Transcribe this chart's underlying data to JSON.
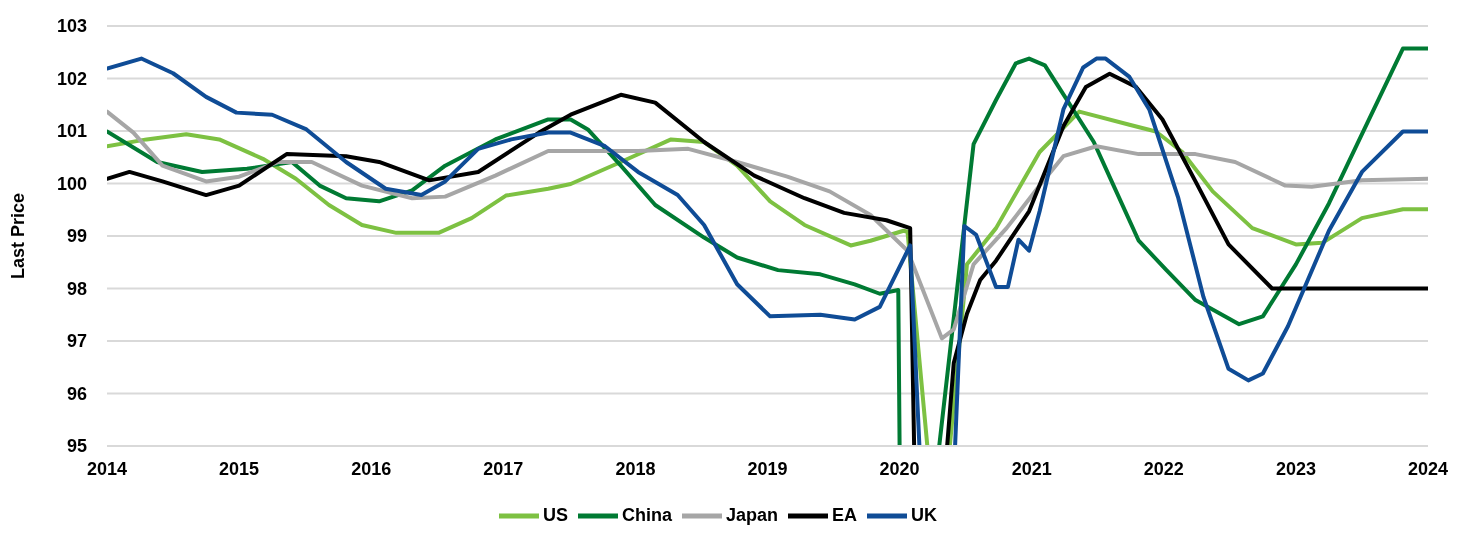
{
  "chart_data": {
    "type": "line",
    "ylabel": "Last Price",
    "xlim": [
      2014,
      2024
    ],
    "xticks": [
      2014,
      2015,
      2016,
      2017,
      2018,
      2019,
      2020,
      2021,
      2022,
      2023,
      2024
    ],
    "ylim": [
      95,
      103
    ],
    "yticks": [
      95,
      96,
      97,
      98,
      99,
      100,
      101,
      102,
      103
    ],
    "grid": "y",
    "legend": "bottom",
    "line_style": "solid",
    "series": [
      {
        "name": "US",
        "color": "#7dc142",
        "x": [
          2014.0,
          2014.3,
          2014.6,
          2014.85,
          2015.18,
          2015.43,
          2015.68,
          2015.93,
          2016.19,
          2016.51,
          2016.76,
          2017.02,
          2017.34,
          2017.51,
          2017.89,
          2018.27,
          2018.52,
          2018.77,
          2019.02,
          2019.28,
          2019.63,
          2019.78,
          2020.03,
          2020.06,
          2020.21,
          2020.3,
          2020.38,
          2020.51,
          2020.73,
          2021.06,
          2021.36,
          2021.74,
          2021.94,
          2022.14,
          2022.37,
          2022.67,
          2023.0,
          2023.2,
          2023.5,
          2023.81,
          2024.0
        ],
        "values": [
          100.71,
          100.84,
          100.94,
          100.84,
          100.47,
          100.09,
          99.59,
          99.21,
          99.06,
          99.06,
          99.34,
          99.77,
          99.9,
          99.99,
          100.41,
          100.84,
          100.79,
          100.34,
          99.66,
          99.21,
          98.82,
          98.91,
          99.1,
          99.08,
          95,
          null,
          95,
          98.46,
          99.15,
          100.6,
          101.37,
          101.12,
          100.99,
          100.6,
          99.85,
          99.15,
          98.84,
          98.87,
          99.34,
          99.51,
          99.51
        ]
      },
      {
        "name": "China",
        "color": "#007a33",
        "x": [
          2014.0,
          2014.38,
          2014.72,
          2015.06,
          2015.4,
          2015.61,
          2015.81,
          2016.06,
          2016.31,
          2016.56,
          2016.94,
          2017.34,
          2017.51,
          2017.64,
          2017.89,
          2018.15,
          2018.52,
          2018.77,
          2019.08,
          2019.4,
          2019.66,
          2019.85,
          2019.99,
          2020.0,
          2020.15,
          2020.3,
          2020.56,
          2020.73,
          2020.88,
          2020.98,
          2021.1,
          2021.47,
          2021.62,
          2021.81,
          2022.02,
          2022.24,
          2022.57,
          2022.75,
          2023.0,
          2023.25,
          2023.5,
          2023.81,
          2024.0
        ],
        "values": [
          100.99,
          100.41,
          100.22,
          100.28,
          100.41,
          99.96,
          99.72,
          99.66,
          99.87,
          100.34,
          100.84,
          101.22,
          101.22,
          101.03,
          100.34,
          99.59,
          98.97,
          98.59,
          98.35,
          98.27,
          98.08,
          97.9,
          97.97,
          95,
          null,
          95,
          100.75,
          101.59,
          102.29,
          102.38,
          102.25,
          100.79,
          99.96,
          98.91,
          98.35,
          97.78,
          97.32,
          97.47,
          98.46,
          99.62,
          100.94,
          102.57,
          102.57
        ]
      },
      {
        "name": "Japan",
        "color": "#a6a6a6",
        "x": [
          2014.0,
          2014.2,
          2014.42,
          2014.75,
          2015.0,
          2015.3,
          2015.55,
          2015.93,
          2016.31,
          2016.56,
          2016.94,
          2017.34,
          2017.51,
          2018.02,
          2018.4,
          2018.77,
          2019.15,
          2019.47,
          2019.78,
          2020.06,
          2020.32,
          2020.41,
          2020.56,
          2020.81,
          2021.06,
          2021.24,
          2021.49,
          2021.81,
          2022.24,
          2022.54,
          2022.92,
          2023.12,
          2023.5,
          2024.0
        ],
        "values": [
          101.37,
          100.97,
          100.34,
          100.04,
          100.13,
          100.41,
          100.41,
          99.96,
          99.72,
          99.75,
          100.15,
          100.62,
          100.62,
          100.62,
          100.66,
          100.41,
          100.13,
          99.85,
          99.4,
          98.72,
          97.05,
          97.22,
          98.46,
          99.15,
          99.96,
          100.52,
          100.71,
          100.56,
          100.56,
          100.41,
          99.96,
          99.94,
          100.06,
          100.09
        ]
      },
      {
        "name": "EA",
        "color": "#000000",
        "x": [
          2014.0,
          2014.17,
          2014.42,
          2014.75,
          2015.0,
          2015.36,
          2015.81,
          2016.06,
          2016.44,
          2016.81,
          2017.27,
          2017.51,
          2017.89,
          2018.15,
          2018.52,
          2018.9,
          2019.28,
          2019.58,
          2019.9,
          2020.08,
          2020.11,
          2020.25,
          2020.36,
          2020.41,
          2020.51,
          2020.61,
          2020.73,
          2020.98,
          2021.24,
          2021.41,
          2021.59,
          2021.79,
          2021.99,
          2022.24,
          2022.49,
          2022.82,
          2024.0
        ],
        "values": [
          100.09,
          100.22,
          100.04,
          99.78,
          99.96,
          100.56,
          100.52,
          100.41,
          100.06,
          100.22,
          100.97,
          101.31,
          101.69,
          101.54,
          100.79,
          100.15,
          99.72,
          99.44,
          99.3,
          99.15,
          95,
          null,
          95,
          96.58,
          97.52,
          98.16,
          98.53,
          99.47,
          101.09,
          101.84,
          102.09,
          101.84,
          101.22,
          100.04,
          98.84,
          98.0,
          98.0
        ]
      },
      {
        "name": "UK",
        "color": "#0f4c96",
        "x": [
          2014.0,
          2014.26,
          2014.5,
          2014.75,
          2014.98,
          2015.25,
          2015.51,
          2015.81,
          2016.11,
          2016.38,
          2016.56,
          2016.81,
          2017.06,
          2017.34,
          2017.51,
          2017.77,
          2018.02,
          2018.32,
          2018.52,
          2018.77,
          2019.02,
          2019.4,
          2019.66,
          2019.85,
          2020.08,
          2020.15,
          2020.3,
          2020.42,
          2020.49,
          2020.58,
          2020.73,
          2020.82,
          2020.9,
          2020.98,
          2021.06,
          2021.24,
          2021.39,
          2021.49,
          2021.56,
          2021.74,
          2021.89,
          2022.11,
          2022.3,
          2022.49,
          2022.64,
          2022.75,
          2022.94,
          2023.25,
          2023.5,
          2023.81,
          2024.0
        ],
        "values": [
          102.19,
          102.38,
          102.1,
          101.65,
          101.35,
          101.31,
          101.03,
          100.41,
          99.9,
          99.78,
          100.04,
          100.66,
          100.84,
          100.97,
          100.97,
          100.71,
          100.22,
          99.78,
          99.21,
          98.08,
          97.47,
          97.5,
          97.41,
          97.65,
          98.82,
          95,
          null,
          95,
          99.19,
          99.02,
          98.03,
          98.03,
          98.93,
          98.72,
          99.47,
          101.41,
          102.21,
          102.38,
          102.38,
          102.03,
          101.41,
          99.72,
          97.84,
          96.47,
          96.25,
          96.38,
          97.28,
          99.1,
          100.22,
          100.99,
          100.99
        ]
      }
    ]
  }
}
